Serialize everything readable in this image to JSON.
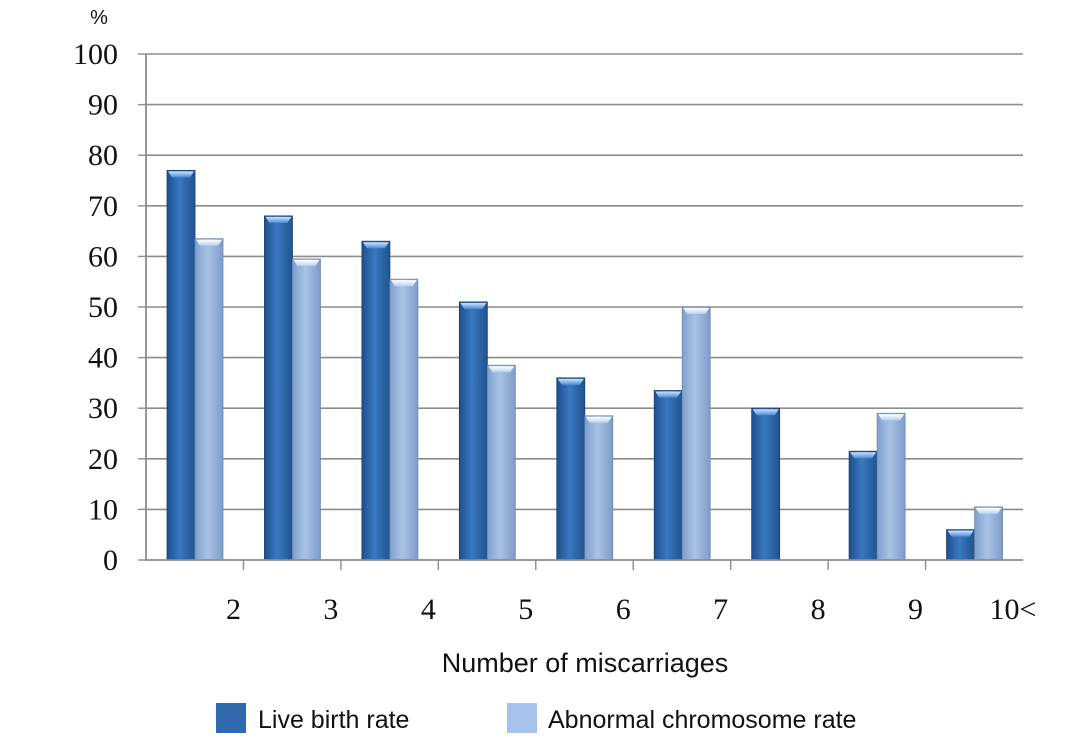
{
  "chart_data": {
    "type": "bar",
    "title": "",
    "ylabel": "%",
    "xlabel": "Number of miscarriages",
    "ylim": [
      0,
      100
    ],
    "yticks": [
      0,
      10,
      20,
      30,
      40,
      50,
      60,
      70,
      80,
      90,
      100
    ],
    "categories": [
      "2",
      "3",
      "4",
      "5",
      "6",
      "7",
      "8",
      "9",
      "10<"
    ],
    "series": [
      {
        "name": "Live birth rate",
        "color": "#2e68ad",
        "values": [
          77,
          68,
          63,
          51,
          36,
          33.5,
          30,
          21.5,
          6
        ]
      },
      {
        "name": "Abnormal chromosome rate",
        "color": "#9ab8e0",
        "values": [
          63.5,
          59.5,
          55.5,
          38.5,
          28.5,
          50,
          0,
          29,
          10.5
        ]
      }
    ],
    "grid": true,
    "legend": "bottom"
  }
}
